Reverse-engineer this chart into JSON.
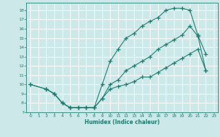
{
  "xlabel": "Humidex (Indice chaleur)",
  "bg_color": "#cce8e8",
  "grid_color": "#ffffff",
  "line_color": "#1a7a6e",
  "xlim": [
    -0.5,
    23.5
  ],
  "ylim": [
    7,
    18.8
  ],
  "yticks": [
    7,
    8,
    9,
    10,
    11,
    12,
    13,
    14,
    15,
    16,
    17,
    18
  ],
  "xticks": [
    0,
    1,
    2,
    3,
    4,
    5,
    6,
    7,
    8,
    9,
    10,
    11,
    12,
    13,
    14,
    15,
    16,
    17,
    18,
    19,
    20,
    21,
    22,
    23
  ],
  "line1_x": [
    0,
    2,
    3,
    4,
    5,
    6,
    7,
    8,
    9,
    10,
    11,
    12,
    13,
    14,
    15,
    16,
    17,
    18,
    19,
    20,
    21,
    22
  ],
  "line1_y": [
    10,
    9.5,
    9.0,
    8.0,
    7.5,
    7.5,
    7.5,
    7.5,
    10.0,
    12.5,
    13.8,
    15.0,
    15.5,
    16.3,
    16.8,
    17.2,
    18.0,
    18.2,
    18.2,
    18.0,
    15.3,
    13.3
  ],
  "line2_x": [
    0,
    2,
    3,
    4,
    5,
    6,
    7,
    8,
    9,
    10,
    11,
    12,
    13,
    14,
    15,
    16,
    17,
    18,
    19,
    20,
    21,
    22
  ],
  "line2_y": [
    10,
    9.5,
    9.0,
    8.0,
    7.5,
    7.5,
    7.5,
    7.5,
    8.5,
    10.0,
    10.5,
    11.5,
    12.0,
    12.5,
    13.0,
    13.8,
    14.3,
    14.8,
    15.3,
    16.3,
    15.2,
    11.5
  ],
  "line3_x": [
    2,
    3,
    4,
    5,
    6,
    7,
    8,
    9,
    10,
    11,
    12,
    13,
    14,
    15,
    16,
    17,
    18,
    19,
    20,
    21,
    22
  ],
  "line3_y": [
    9.5,
    9.0,
    8.0,
    7.5,
    7.5,
    7.5,
    7.5,
    8.5,
    9.5,
    9.8,
    10.0,
    10.3,
    10.8,
    10.8,
    11.3,
    11.8,
    12.3,
    12.8,
    13.3,
    13.8,
    11.5
  ]
}
